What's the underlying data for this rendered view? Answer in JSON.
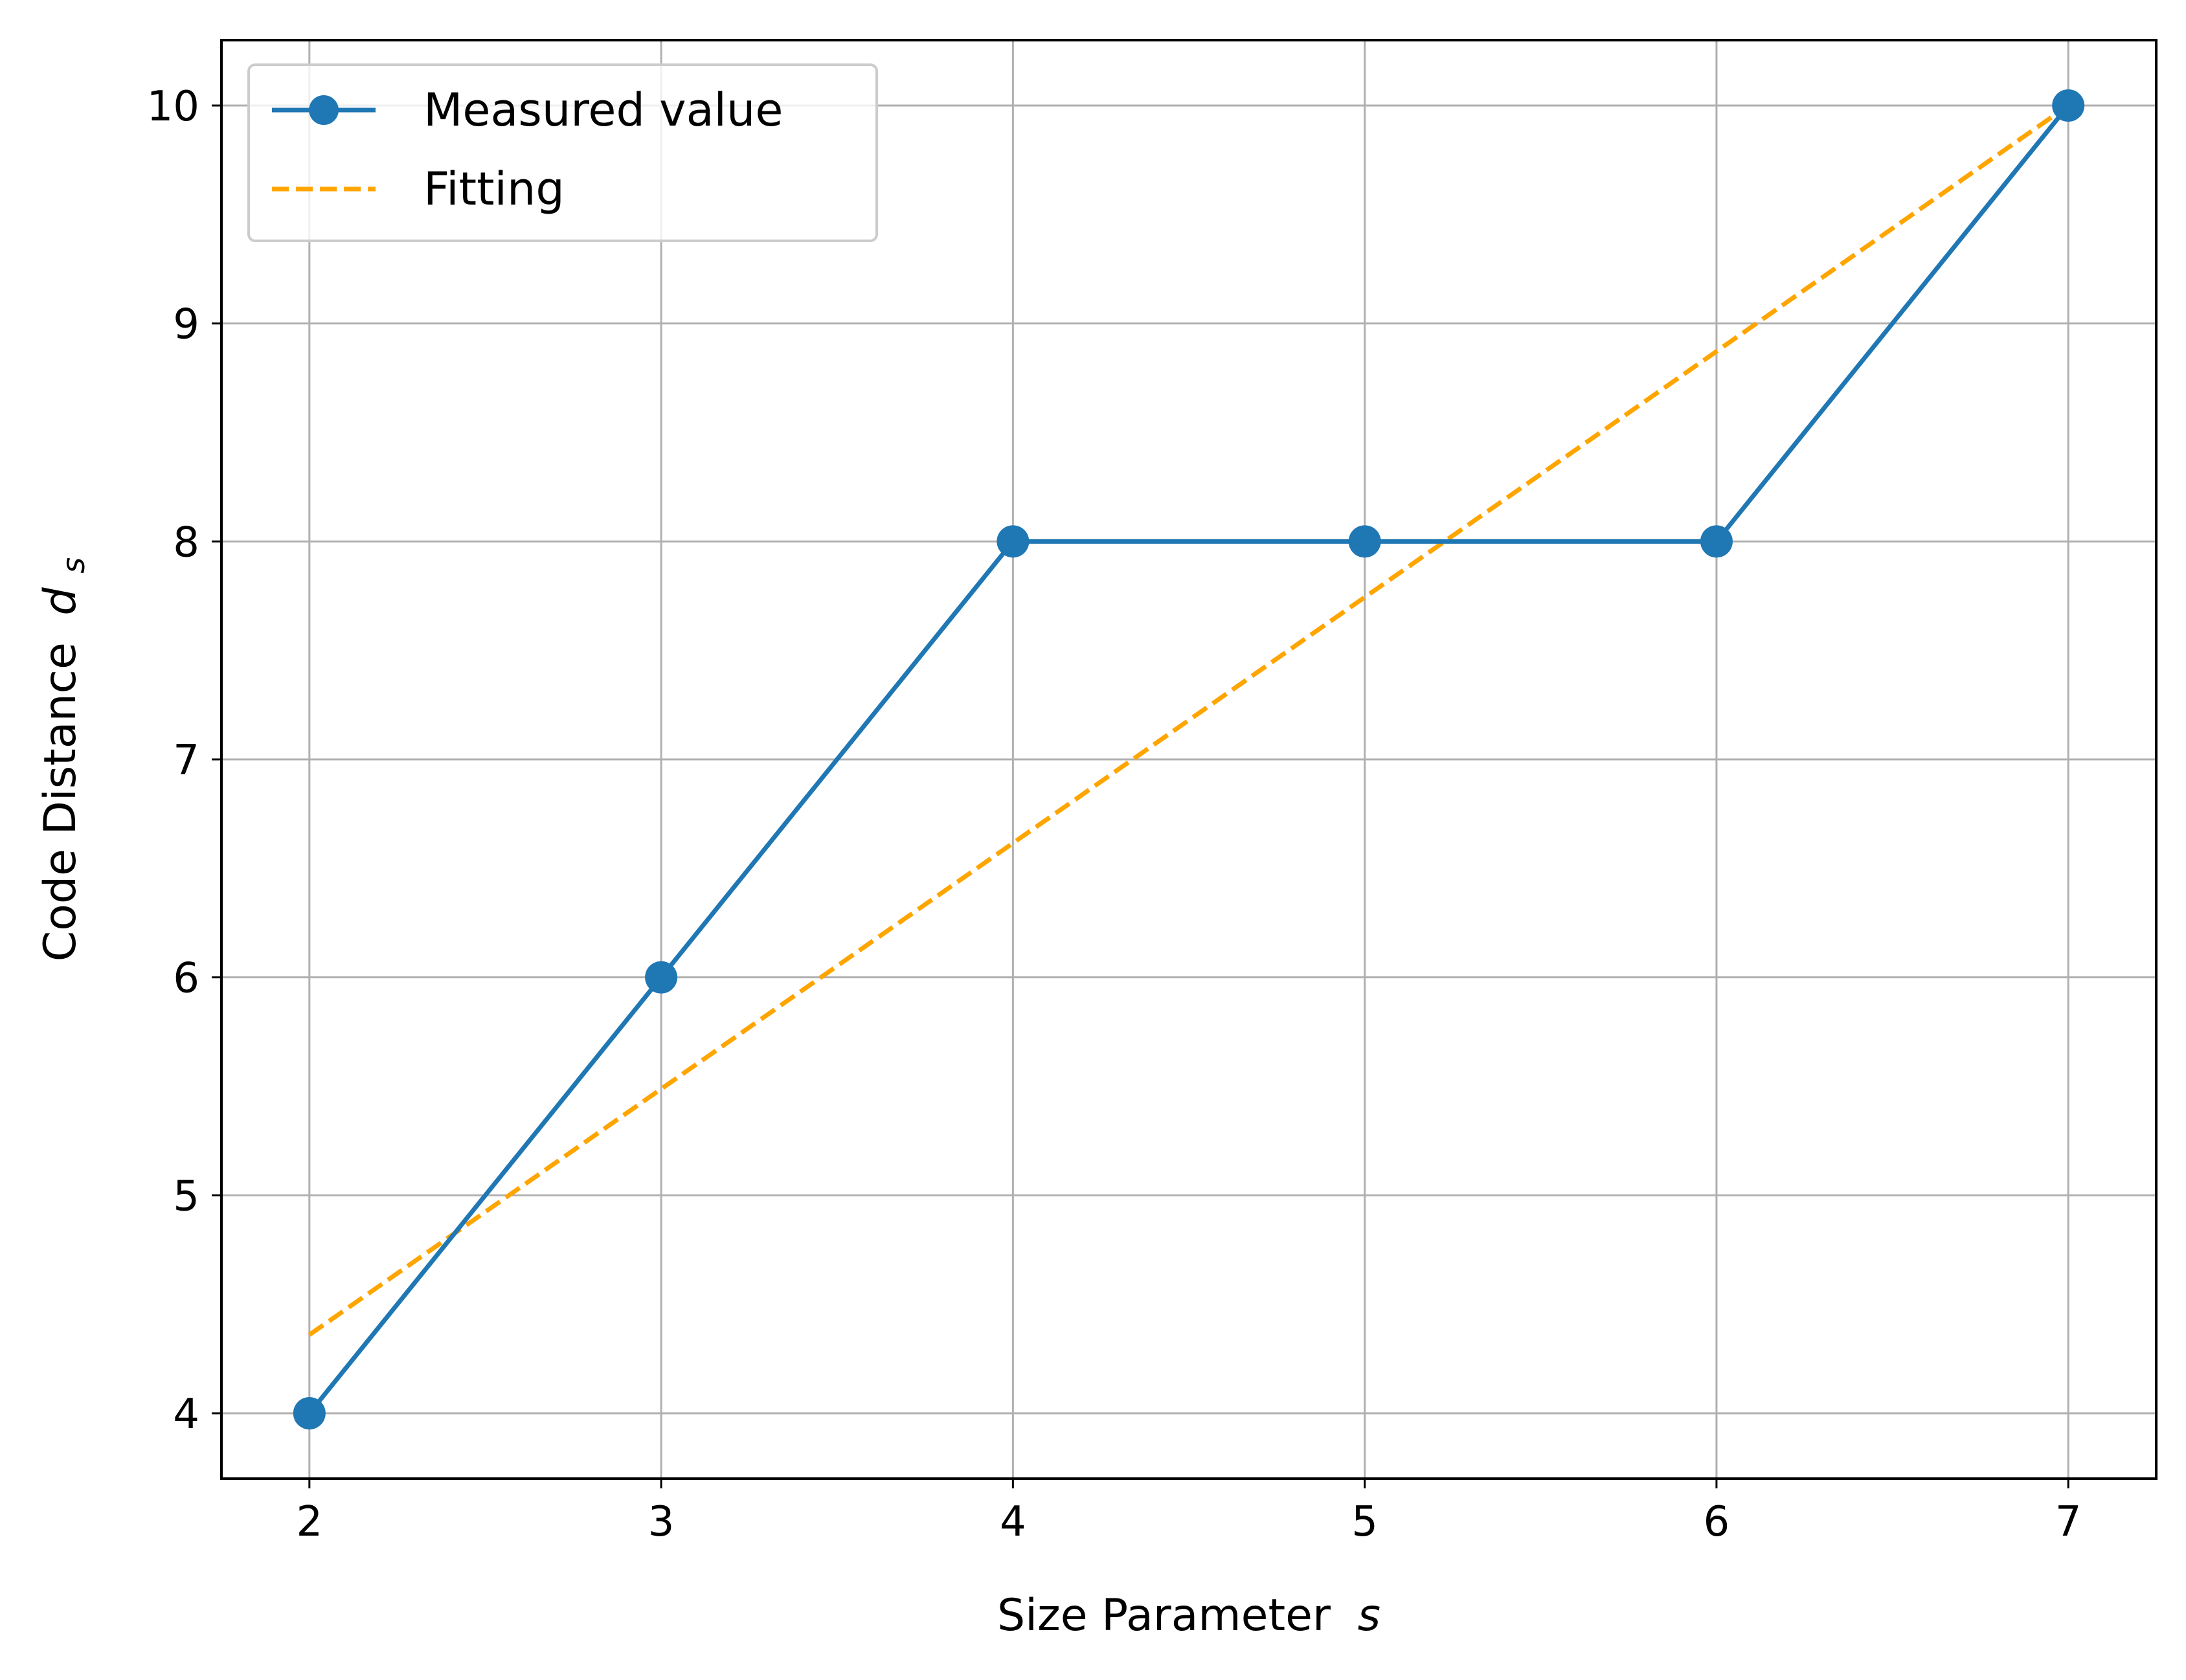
{
  "chart_data": {
    "type": "line",
    "title": "",
    "xlabel": "Size Parameter",
    "xlabel_var": "s",
    "ylabel": "Code Distance",
    "ylabel_var": "d",
    "ylabel_sub": "s",
    "x": [
      2,
      3,
      4,
      5,
      6,
      7
    ],
    "xlim": [
      1.75,
      7.25
    ],
    "ylim": [
      3.7,
      10.3
    ],
    "xticks": [
      2,
      3,
      4,
      5,
      6,
      7
    ],
    "yticks": [
      4,
      5,
      6,
      7,
      8,
      9,
      10
    ],
    "grid": true,
    "legend_position": "upper-left",
    "series": [
      {
        "name": "Measured value",
        "style": "solid-with-markers",
        "color": "#1f77b4",
        "x": [
          2,
          3,
          4,
          5,
          6,
          7
        ],
        "values": [
          4,
          6,
          8,
          8,
          8,
          10
        ]
      },
      {
        "name": "Fitting",
        "style": "dashed",
        "color": "#ffa500",
        "x": [
          2,
          7
        ],
        "values": [
          4.36,
          10.0
        ]
      }
    ]
  }
}
